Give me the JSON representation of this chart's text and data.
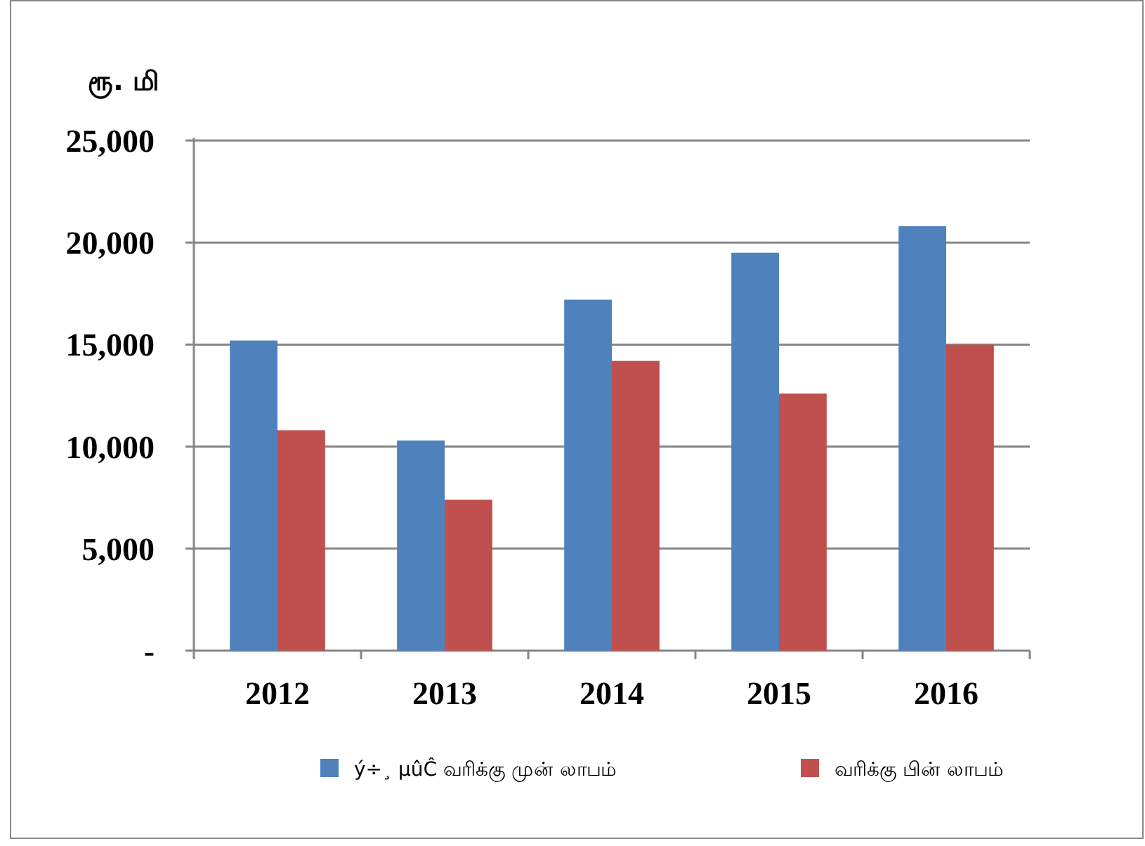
{
  "chart_data": {
    "type": "bar",
    "ylabel": "ரூ. மி",
    "categories": [
      "2012",
      "2013",
      "2014",
      "2015",
      "2016"
    ],
    "series": [
      {
        "name": "ý÷¸ µûĈ வரிக்கு முன் லாபம்",
        "color": "#4f81bd",
        "values": [
          15200,
          10300,
          17200,
          19500,
          20800
        ]
      },
      {
        "name": "வரிக்கு பின் லாபம்",
        "color": "#c0504d",
        "values": [
          10800,
          7400,
          14200,
          12600,
          15000
        ]
      }
    ],
    "ylim": [
      0,
      25000
    ],
    "yticks": [
      {
        "value": 0,
        "label": "-"
      },
      {
        "value": 5000,
        "label": "5,000"
      },
      {
        "value": 10000,
        "label": "10,000"
      },
      {
        "value": 15000,
        "label": "15,000"
      },
      {
        "value": 20000,
        "label": "20,000"
      },
      {
        "value": 25000,
        "label": "25,000"
      }
    ],
    "grid": "y",
    "legend": "bottom"
  }
}
